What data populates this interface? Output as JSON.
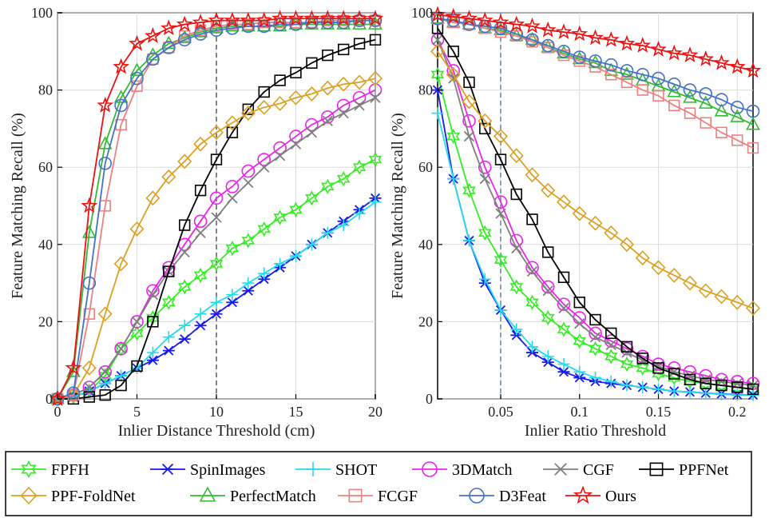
{
  "chart_data": [
    {
      "type": "line",
      "id": "left",
      "xlabel": "Inlier Distance Threshold (cm)",
      "ylabel": "Feature Matching Recall (%)",
      "xlim": [
        0,
        20
      ],
      "ylim": [
        0,
        100
      ],
      "xticks": [
        0,
        5,
        10,
        15,
        20
      ],
      "yticks": [
        0,
        20,
        40,
        60,
        80,
        100
      ],
      "vline": 10,
      "x": [
        0,
        1,
        2,
        3,
        4,
        5,
        6,
        7,
        8,
        9,
        10,
        11,
        12,
        13,
        14,
        15,
        16,
        17,
        18,
        19,
        20
      ],
      "series": [
        {
          "name": "FPFH",
          "values": [
            0,
            0.5,
            2,
            6,
            13,
            17,
            21,
            25,
            29,
            32,
            35,
            39,
            41,
            44,
            47,
            49,
            52,
            55,
            57,
            60,
            62
          ]
        },
        {
          "name": "SpinImages",
          "values": [
            0,
            0.5,
            2,
            4,
            6,
            8,
            10,
            12.5,
            15.5,
            19,
            22,
            25,
            28,
            31,
            34,
            37,
            40,
            43,
            46,
            49,
            52
          ]
        },
        {
          "name": "SHOT",
          "values": [
            0,
            0.5,
            2,
            4,
            6,
            8,
            12,
            16,
            19,
            22,
            25,
            27,
            30,
            32.5,
            35,
            37,
            40,
            43,
            45,
            48,
            51
          ]
        },
        {
          "name": "3DMatch",
          "values": [
            0,
            1,
            3,
            7,
            13,
            20,
            28,
            34,
            40,
            46,
            52,
            55,
            59,
            62,
            65,
            68,
            71,
            73,
            76,
            78,
            80
          ]
        },
        {
          "name": "CGF",
          "values": [
            0,
            1,
            3,
            7,
            13,
            20,
            27,
            33,
            38,
            43,
            47,
            52,
            56,
            60,
            63,
            66,
            69,
            72,
            74,
            76,
            78
          ]
        },
        {
          "name": "PPFNet",
          "values": [
            0,
            0,
            0.5,
            1,
            3.5,
            8.5,
            20,
            33,
            45,
            54,
            62,
            69,
            75,
            79.5,
            82.5,
            84.5,
            87,
            89,
            90.5,
            92,
            93
          ]
        },
        {
          "name": "PPF-FoldNet",
          "values": [
            0,
            1,
            8,
            22,
            35,
            44,
            52,
            57.5,
            61.5,
            66,
            69,
            71.5,
            74,
            75.5,
            76.5,
            78,
            79,
            80.5,
            81.5,
            82,
            83
          ]
        },
        {
          "name": "PerfectMatch",
          "values": [
            0,
            7,
            43,
            66,
            78,
            85,
            89,
            92,
            93.5,
            95,
            96,
            96.5,
            96.5,
            96.5,
            96.5,
            97,
            97,
            97,
            97,
            97,
            97
          ]
        },
        {
          "name": "FCGF",
          "values": [
            0,
            1,
            22,
            50,
            71,
            81,
            88,
            91,
            94,
            95.5,
            96.5,
            97,
            97,
            97.5,
            97.5,
            97.5,
            97.5,
            98,
            98,
            98,
            98
          ]
        },
        {
          "name": "D3Feat",
          "values": [
            0,
            1.5,
            30,
            61,
            76,
            83,
            88,
            91,
            93,
            94.5,
            95.5,
            96,
            96.5,
            96.5,
            97,
            97,
            97.5,
            97.5,
            97.5,
            98,
            98
          ]
        },
        {
          "name": "Ours",
          "values": [
            0,
            8,
            50,
            76,
            86,
            92,
            94,
            96,
            97,
            97.5,
            98,
            98,
            98,
            98,
            98.5,
            98.5,
            98.5,
            98.5,
            98.5,
            98.5,
            98.5
          ]
        }
      ]
    },
    {
      "type": "line",
      "id": "right",
      "xlabel": "Inlier Ratio Threshold",
      "ylabel": "Feature Matching Recall (%)",
      "xlim": [
        0.01,
        0.21
      ],
      "ylim": [
        0,
        100
      ],
      "xticks": [
        0.05,
        0.1,
        0.15,
        0.2
      ],
      "xtick_labels": [
        "0.05",
        "0.1",
        "0.15",
        "0.2"
      ],
      "yticks": [
        0,
        20,
        40,
        60,
        80,
        100
      ],
      "vline": 0.05,
      "x": [
        0.01,
        0.02,
        0.03,
        0.04,
        0.05,
        0.06,
        0.07,
        0.08,
        0.09,
        0.1,
        0.11,
        0.12,
        0.13,
        0.14,
        0.15,
        0.16,
        0.17,
        0.18,
        0.19,
        0.2,
        0.21
      ],
      "series": [
        {
          "name": "FPFH",
          "values": [
            84,
            68,
            54,
            43,
            36,
            29,
            25,
            21,
            18,
            15,
            13,
            11,
            9,
            8,
            6.5,
            5.5,
            4.5,
            4,
            3.5,
            3,
            2.5
          ]
        },
        {
          "name": "SpinImages",
          "values": [
            80,
            57,
            41,
            30,
            23,
            16.5,
            12,
            9.5,
            7,
            5.5,
            4.5,
            4,
            3.5,
            3,
            2.5,
            2,
            1.8,
            1.5,
            1.3,
            1.1,
            1
          ]
        },
        {
          "name": "SHOT",
          "values": [
            74,
            57,
            41,
            31,
            23,
            18,
            13.5,
            11,
            9,
            7,
            5.5,
            4.5,
            3.5,
            3,
            2.5,
            2,
            1.8,
            1.5,
            1.2,
            1,
            1
          ]
        },
        {
          "name": "3DMatch",
          "values": [
            93,
            85,
            72,
            60,
            51,
            41,
            34,
            29,
            24.5,
            21,
            17,
            15,
            13,
            11,
            9,
            8,
            7,
            6,
            5,
            4.5,
            4
          ]
        },
        {
          "name": "CGF",
          "values": [
            93,
            83,
            68,
            57,
            48,
            39,
            33,
            28,
            23.5,
            19.5,
            16,
            14,
            12,
            10,
            8.5,
            7,
            6,
            5,
            4.5,
            4,
            3.5
          ]
        },
        {
          "name": "PPFNet",
          "values": [
            96,
            90,
            82,
            70,
            62,
            53,
            46.5,
            38,
            31.5,
            25,
            20.5,
            17,
            13.5,
            10.5,
            8,
            6.5,
            5,
            4,
            3.5,
            3,
            2.5
          ]
        },
        {
          "name": "PPF-FoldNet",
          "values": [
            90,
            84,
            77,
            72,
            68,
            63,
            58,
            54,
            51,
            48,
            45.5,
            43,
            40,
            36.5,
            34,
            32,
            30,
            28,
            26.5,
            25,
            23.5
          ]
        },
        {
          "name": "PerfectMatch",
          "values": [
            98.5,
            97.5,
            97,
            96,
            95.5,
            94,
            93,
            91,
            89.5,
            88,
            87,
            85,
            84,
            82.5,
            81,
            79.5,
            78,
            76.5,
            74.5,
            73,
            71
          ]
        },
        {
          "name": "FCGF",
          "values": [
            98.5,
            97.5,
            97,
            96,
            95,
            94,
            92.5,
            91,
            89,
            87.5,
            86,
            84,
            82,
            80,
            78.5,
            76,
            74,
            71.5,
            69,
            67,
            65
          ]
        },
        {
          "name": "D3Feat",
          "values": [
            98.5,
            98,
            97,
            96.5,
            96,
            94.5,
            93,
            91.5,
            90,
            88.5,
            87.5,
            86.5,
            85,
            84,
            83,
            81.5,
            80,
            79,
            77.5,
            75.5,
            74.5
          ]
        },
        {
          "name": "Ours",
          "values": [
            99.5,
            99,
            98.5,
            98,
            97.5,
            97,
            96.5,
            95.5,
            95,
            94.5,
            93.5,
            93,
            92,
            91.5,
            90.5,
            89.5,
            89,
            88,
            87,
            86,
            85
          ]
        }
      ]
    }
  ],
  "legend": {
    "rows": [
      [
        "FPFH",
        "SpinImages",
        "SHOT",
        "3DMatch",
        "CGF",
        "PPFNet"
      ],
      [
        "PPF-FoldNet",
        "PerfectMatch",
        "FCGF",
        "D3Feat",
        "Ours"
      ]
    ]
  },
  "styles": {
    "FPFH": {
      "color": "#33ee22",
      "marker": "star6"
    },
    "SpinImages": {
      "color": "#1a1aee",
      "marker": "asterisk"
    },
    "SHOT": {
      "color": "#22ddee",
      "marker": "plus"
    },
    "3DMatch": {
      "color": "#ee22ee",
      "marker": "circle"
    },
    "CGF": {
      "color": "#7f7f7f",
      "marker": "x"
    },
    "PPFNet": {
      "color": "#000000",
      "marker": "square"
    },
    "PPF-FoldNet": {
      "color": "#dda020",
      "marker": "diamond"
    },
    "PerfectMatch": {
      "color": "#33bb33",
      "marker": "triangle"
    },
    "FCGF": {
      "color": "#f08080",
      "marker": "square"
    },
    "D3Feat": {
      "color": "#4472c4",
      "marker": "circle"
    },
    "Ours": {
      "color": "#ee1111",
      "marker": "star5"
    }
  }
}
